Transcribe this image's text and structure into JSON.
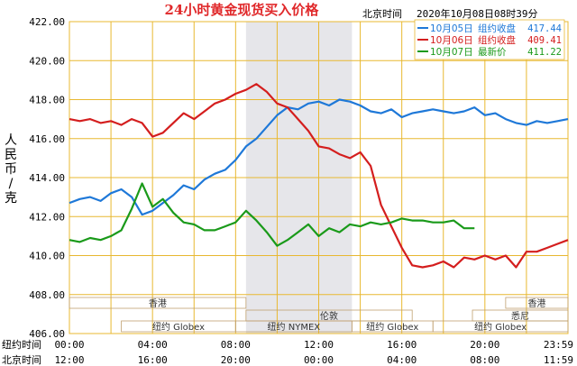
{
  "chart_data": {
    "type": "line",
    "title": "24小时黄金现货买入价格",
    "timestamp_label": "北京时间",
    "timestamp": "2020年10月08日08时39分",
    "ylabel": [
      "人",
      "民",
      "币",
      "/",
      "克"
    ],
    "ylim": [
      406,
      422
    ],
    "yticks": [
      "406.00",
      "408.00",
      "410.00",
      "412.00",
      "414.00",
      "416.00",
      "418.00",
      "420.00",
      "422.00"
    ],
    "grid": true,
    "legend_placement": "top-right",
    "x_axes": [
      {
        "label": "纽约时间",
        "ticks": [
          "00:00",
          "04:00",
          "08:00",
          "12:00",
          "16:00",
          "20:00",
          "23:59"
        ]
      },
      {
        "label": "北京时间",
        "ticks": [
          "12:00",
          "16:00",
          "20:00",
          "00:00",
          "04:00",
          "08:00",
          "11:59"
        ]
      }
    ],
    "sessions": [
      {
        "name": "香港",
        "from": 0,
        "to": 8.5
      },
      {
        "name": "伦敦",
        "from": 8.5,
        "to": 16.5
      },
      {
        "name": "纽约 Globex",
        "from": 2.5,
        "to": 8
      },
      {
        "name": "纽约 NYMEX",
        "from": 8,
        "to": 13.6
      },
      {
        "name": "纽约 Globex",
        "from": 13.6,
        "to": 17.5
      },
      {
        "name": "香港",
        "from": 21,
        "to": 24
      },
      {
        "name": "悉尼",
        "from": 19.4,
        "to": 24
      },
      {
        "name": "纽约 Globex",
        "from": 17.5,
        "to": 24
      }
    ],
    "series": [
      {
        "name": "10月05日",
        "label": "组约收盘",
        "value": "417.44",
        "color": "#1e78d8",
        "x": [
          0,
          0.5,
          1,
          1.5,
          2,
          2.5,
          3,
          3.5,
          4,
          4.5,
          5,
          5.5,
          6,
          6.5,
          7,
          7.5,
          8,
          8.5,
          9,
          9.5,
          10,
          10.5,
          11,
          11.5,
          12,
          12.5,
          13,
          13.5,
          14,
          14.5,
          15,
          15.5,
          16,
          16.5,
          17,
          17.5,
          18,
          18.5,
          19,
          19.5,
          20,
          20.5,
          21,
          21.5,
          22,
          22.5,
          23,
          23.5,
          24
        ],
        "values": [
          412.7,
          412.9,
          413.0,
          412.8,
          413.2,
          413.4,
          413.0,
          412.1,
          412.3,
          412.7,
          413.1,
          413.6,
          413.4,
          413.9,
          414.2,
          414.4,
          414.9,
          415.6,
          416.0,
          416.6,
          417.2,
          417.6,
          417.5,
          417.8,
          417.9,
          417.7,
          418.0,
          417.9,
          417.7,
          417.4,
          417.3,
          417.5,
          417.1,
          417.3,
          417.4,
          417.5,
          417.4,
          417.3,
          417.4,
          417.6,
          417.2,
          417.3,
          417.0,
          416.8,
          416.7,
          416.9,
          416.8,
          416.9,
          417.0
        ]
      },
      {
        "name": "10月06日",
        "label": "组约收盘",
        "value": "409.41",
        "color": "#d41e1e",
        "x": [
          0,
          0.5,
          1,
          1.5,
          2,
          2.5,
          3,
          3.5,
          4,
          4.5,
          5,
          5.5,
          6,
          6.5,
          7,
          7.5,
          8,
          8.5,
          9,
          9.5,
          10,
          10.5,
          11,
          11.5,
          12,
          12.5,
          13,
          13.5,
          14,
          14.5,
          15,
          15.5,
          16,
          16.5,
          17,
          17.5,
          18,
          18.5,
          19,
          19.5,
          20,
          20.5,
          21,
          21.5,
          22,
          22.5,
          23,
          23.5,
          24
        ],
        "values": [
          417.0,
          416.9,
          417.0,
          416.8,
          416.9,
          416.7,
          417.0,
          416.8,
          416.1,
          416.3,
          416.8,
          417.3,
          417.0,
          417.4,
          417.8,
          418.0,
          418.3,
          418.5,
          418.8,
          418.4,
          417.8,
          417.6,
          417.0,
          416.4,
          415.6,
          415.5,
          415.2,
          415.0,
          415.3,
          414.6,
          412.6,
          411.5,
          410.4,
          409.5,
          409.4,
          409.5,
          409.7,
          409.4,
          409.9,
          409.8,
          410.0,
          409.8,
          410.0,
          409.4,
          410.2,
          410.2,
          410.4,
          410.6,
          410.8
        ]
      },
      {
        "name": "10月07日",
        "label": "最新价",
        "value": "411.22",
        "color": "#1a9a1a",
        "x": [
          0,
          0.5,
          1,
          1.5,
          2,
          2.5,
          3,
          3.5,
          4,
          4.5,
          5,
          5.5,
          6,
          6.5,
          7,
          7.5,
          8,
          8.5,
          9,
          9.5,
          10,
          10.5,
          11,
          11.5,
          12,
          12.5,
          13,
          13.5,
          14,
          14.5,
          15,
          15.5,
          16,
          16.5,
          17,
          17.5,
          18,
          18.5,
          19,
          19.5
        ],
        "values": [
          410.8,
          410.7,
          410.9,
          410.8,
          411.0,
          411.3,
          412.4,
          413.7,
          412.5,
          412.9,
          412.2,
          411.7,
          411.6,
          411.3,
          411.3,
          411.5,
          411.7,
          412.3,
          411.8,
          411.2,
          410.5,
          410.8,
          411.2,
          411.6,
          411.0,
          411.4,
          411.2,
          411.6,
          411.5,
          411.7,
          411.6,
          411.7,
          411.9,
          411.8,
          411.8,
          411.7,
          411.7,
          411.8,
          411.4,
          411.4
        ]
      }
    ]
  }
}
